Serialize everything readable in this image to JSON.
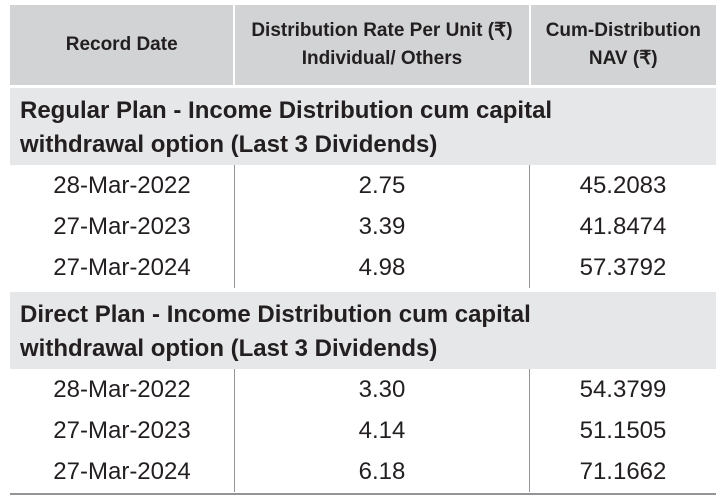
{
  "table": {
    "headers": {
      "record_date": "Record Date",
      "distribution_rate_line1": "Distribution Rate Per Unit  (₹)",
      "distribution_rate_line2": "Individual/ Others",
      "cum_nav_line1": "Cum-Distribution",
      "cum_nav_line2": "NAV (₹)"
    },
    "sections": [
      {
        "title_line1": "Regular Plan - Income Distribution cum capital",
        "title_line2": "withdrawal option (Last 3 Dividends)",
        "rows": [
          {
            "date": "28-Mar-2022",
            "rate": "2.75",
            "nav": "45.2083"
          },
          {
            "date": "27-Mar-2023",
            "rate": "3.39",
            "nav": "41.8474"
          },
          {
            "date": "27-Mar-2024",
            "rate": "4.98",
            "nav": "57.3792"
          }
        ]
      },
      {
        "title_line1": "Direct Plan - Income Distribution cum capital",
        "title_line2": "withdrawal option (Last 3 Dividends)",
        "rows": [
          {
            "date": "28-Mar-2022",
            "rate": "3.30",
            "nav": "54.3799"
          },
          {
            "date": "27-Mar-2023",
            "rate": "4.14",
            "nav": "51.1505"
          },
          {
            "date": "27-Mar-2024",
            "rate": "6.18",
            "nav": "71.1662"
          }
        ]
      }
    ],
    "colors": {
      "header_bg": "#d1d3d4",
      "section_bg": "#e6e7e8",
      "text": "#231f20",
      "divider": "#939598"
    }
  }
}
